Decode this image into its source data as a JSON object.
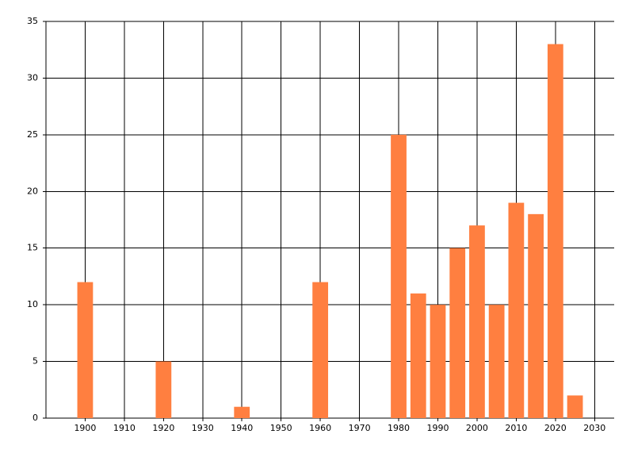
{
  "chart_data": {
    "type": "bar",
    "x": [
      1900,
      1920,
      1940,
      1960,
      1980,
      1985,
      1990,
      1995,
      2000,
      2005,
      2010,
      2015,
      2020,
      2025
    ],
    "values": [
      12,
      5,
      1,
      12,
      25,
      11,
      10,
      15,
      17,
      10,
      19,
      18,
      33,
      2
    ],
    "color": "#ff7f40",
    "xlim": [
      1890,
      2035
    ],
    "xticks": [
      1900,
      1910,
      1920,
      1930,
      1940,
      1950,
      1960,
      1970,
      1980,
      1990,
      2000,
      2010,
      2020,
      2030
    ],
    "ylim": [
      0,
      35
    ],
    "yticks": [
      0,
      5,
      10,
      15,
      20,
      25,
      30,
      35
    ],
    "grid": true
  }
}
